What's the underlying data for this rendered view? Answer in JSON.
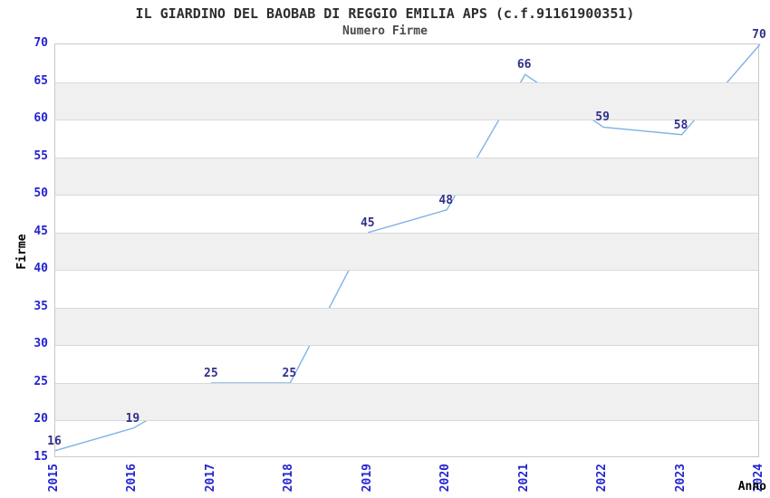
{
  "chart_data": {
    "type": "line",
    "title": "IL GIARDINO DEL BAOBAB DI REGGIO EMILIA APS (c.f.91161900351)",
    "subtitle": "Numero Firme",
    "xlabel": "Anno",
    "ylabel": "Firme",
    "x": [
      2015,
      2016,
      2017,
      2018,
      2019,
      2020,
      2021,
      2022,
      2023,
      2024
    ],
    "values": [
      16,
      19,
      25,
      25,
      45,
      48,
      66,
      59,
      58,
      70
    ],
    "ylim": [
      15,
      70
    ],
    "ytick_step": 5,
    "grid": "horizontal",
    "alternating_bands": true,
    "legend_position": "none",
    "data_labels_visible": true
  },
  "colors": {
    "line": "#7db3e8",
    "tick_label": "#2424cf",
    "data_label": "#31308d",
    "title": "#2e2e2e",
    "subtitle": "#4a4a4a",
    "axis_title": "#000000",
    "band": "#f0f0f0",
    "grid": "#d9d9d9",
    "border": "#c9c9c9",
    "background": "#ffffff"
  }
}
